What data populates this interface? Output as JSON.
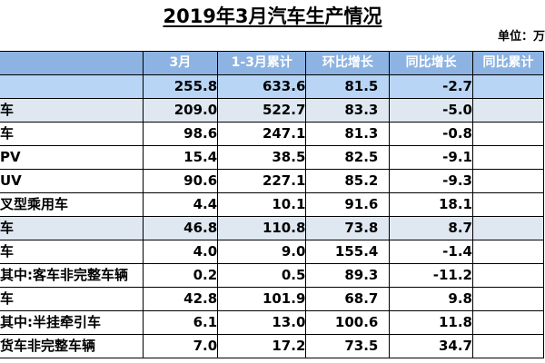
{
  "title": "2019年3月汽车生产情况",
  "unit": "单位：万",
  "columns": [
    "",
    "3月",
    "1-3月累计",
    "环比增长",
    "同比增长",
    "同比累计"
  ],
  "rows": [
    {
      "label": "",
      "style": "total",
      "values": [
        "255.8",
        "633.6",
        "81.5",
        "-2.7",
        ""
      ]
    },
    {
      "label": "车",
      "style": "grp",
      "values": [
        "209.0",
        "522.7",
        "83.3",
        "-5.0",
        ""
      ]
    },
    {
      "label": "车",
      "style": "",
      "values": [
        "98.6",
        "247.1",
        "81.3",
        "-0.8",
        ""
      ]
    },
    {
      "label": "PV",
      "style": "",
      "values": [
        "15.4",
        "38.5",
        "82.5",
        "-9.1",
        ""
      ]
    },
    {
      "label": "UV",
      "style": "",
      "values": [
        "90.6",
        "227.1",
        "85.2",
        "-9.3",
        ""
      ]
    },
    {
      "label": "叉型乘用车",
      "style": "",
      "values": [
        "4.4",
        "10.1",
        "91.6",
        "18.1",
        ""
      ]
    },
    {
      "label": "车",
      "style": "grp",
      "values": [
        "46.8",
        "110.8",
        "73.8",
        "8.7",
        ""
      ]
    },
    {
      "label": "车",
      "style": "",
      "values": [
        "4.0",
        "9.0",
        "155.4",
        "-1.4",
        ""
      ]
    },
    {
      "label": "其中:客车非完整车辆",
      "style": "",
      "values": [
        "0.2",
        "0.5",
        "89.3",
        "-11.2",
        ""
      ]
    },
    {
      "label": "车",
      "style": "",
      "values": [
        "42.8",
        "101.9",
        "68.7",
        "9.8",
        ""
      ]
    },
    {
      "label": "其中:半挂牵引车",
      "style": "",
      "values": [
        "6.1",
        "13.0",
        "100.6",
        "11.8",
        ""
      ]
    },
    {
      "label": "货车非完整车辆",
      "style": "",
      "values": [
        "7.0",
        "17.2",
        "73.5",
        "34.7",
        ""
      ]
    }
  ],
  "colors": {
    "header": "#8db3e2",
    "total_row": "#b8d5f5",
    "group_row": "#dfe7f0"
  }
}
